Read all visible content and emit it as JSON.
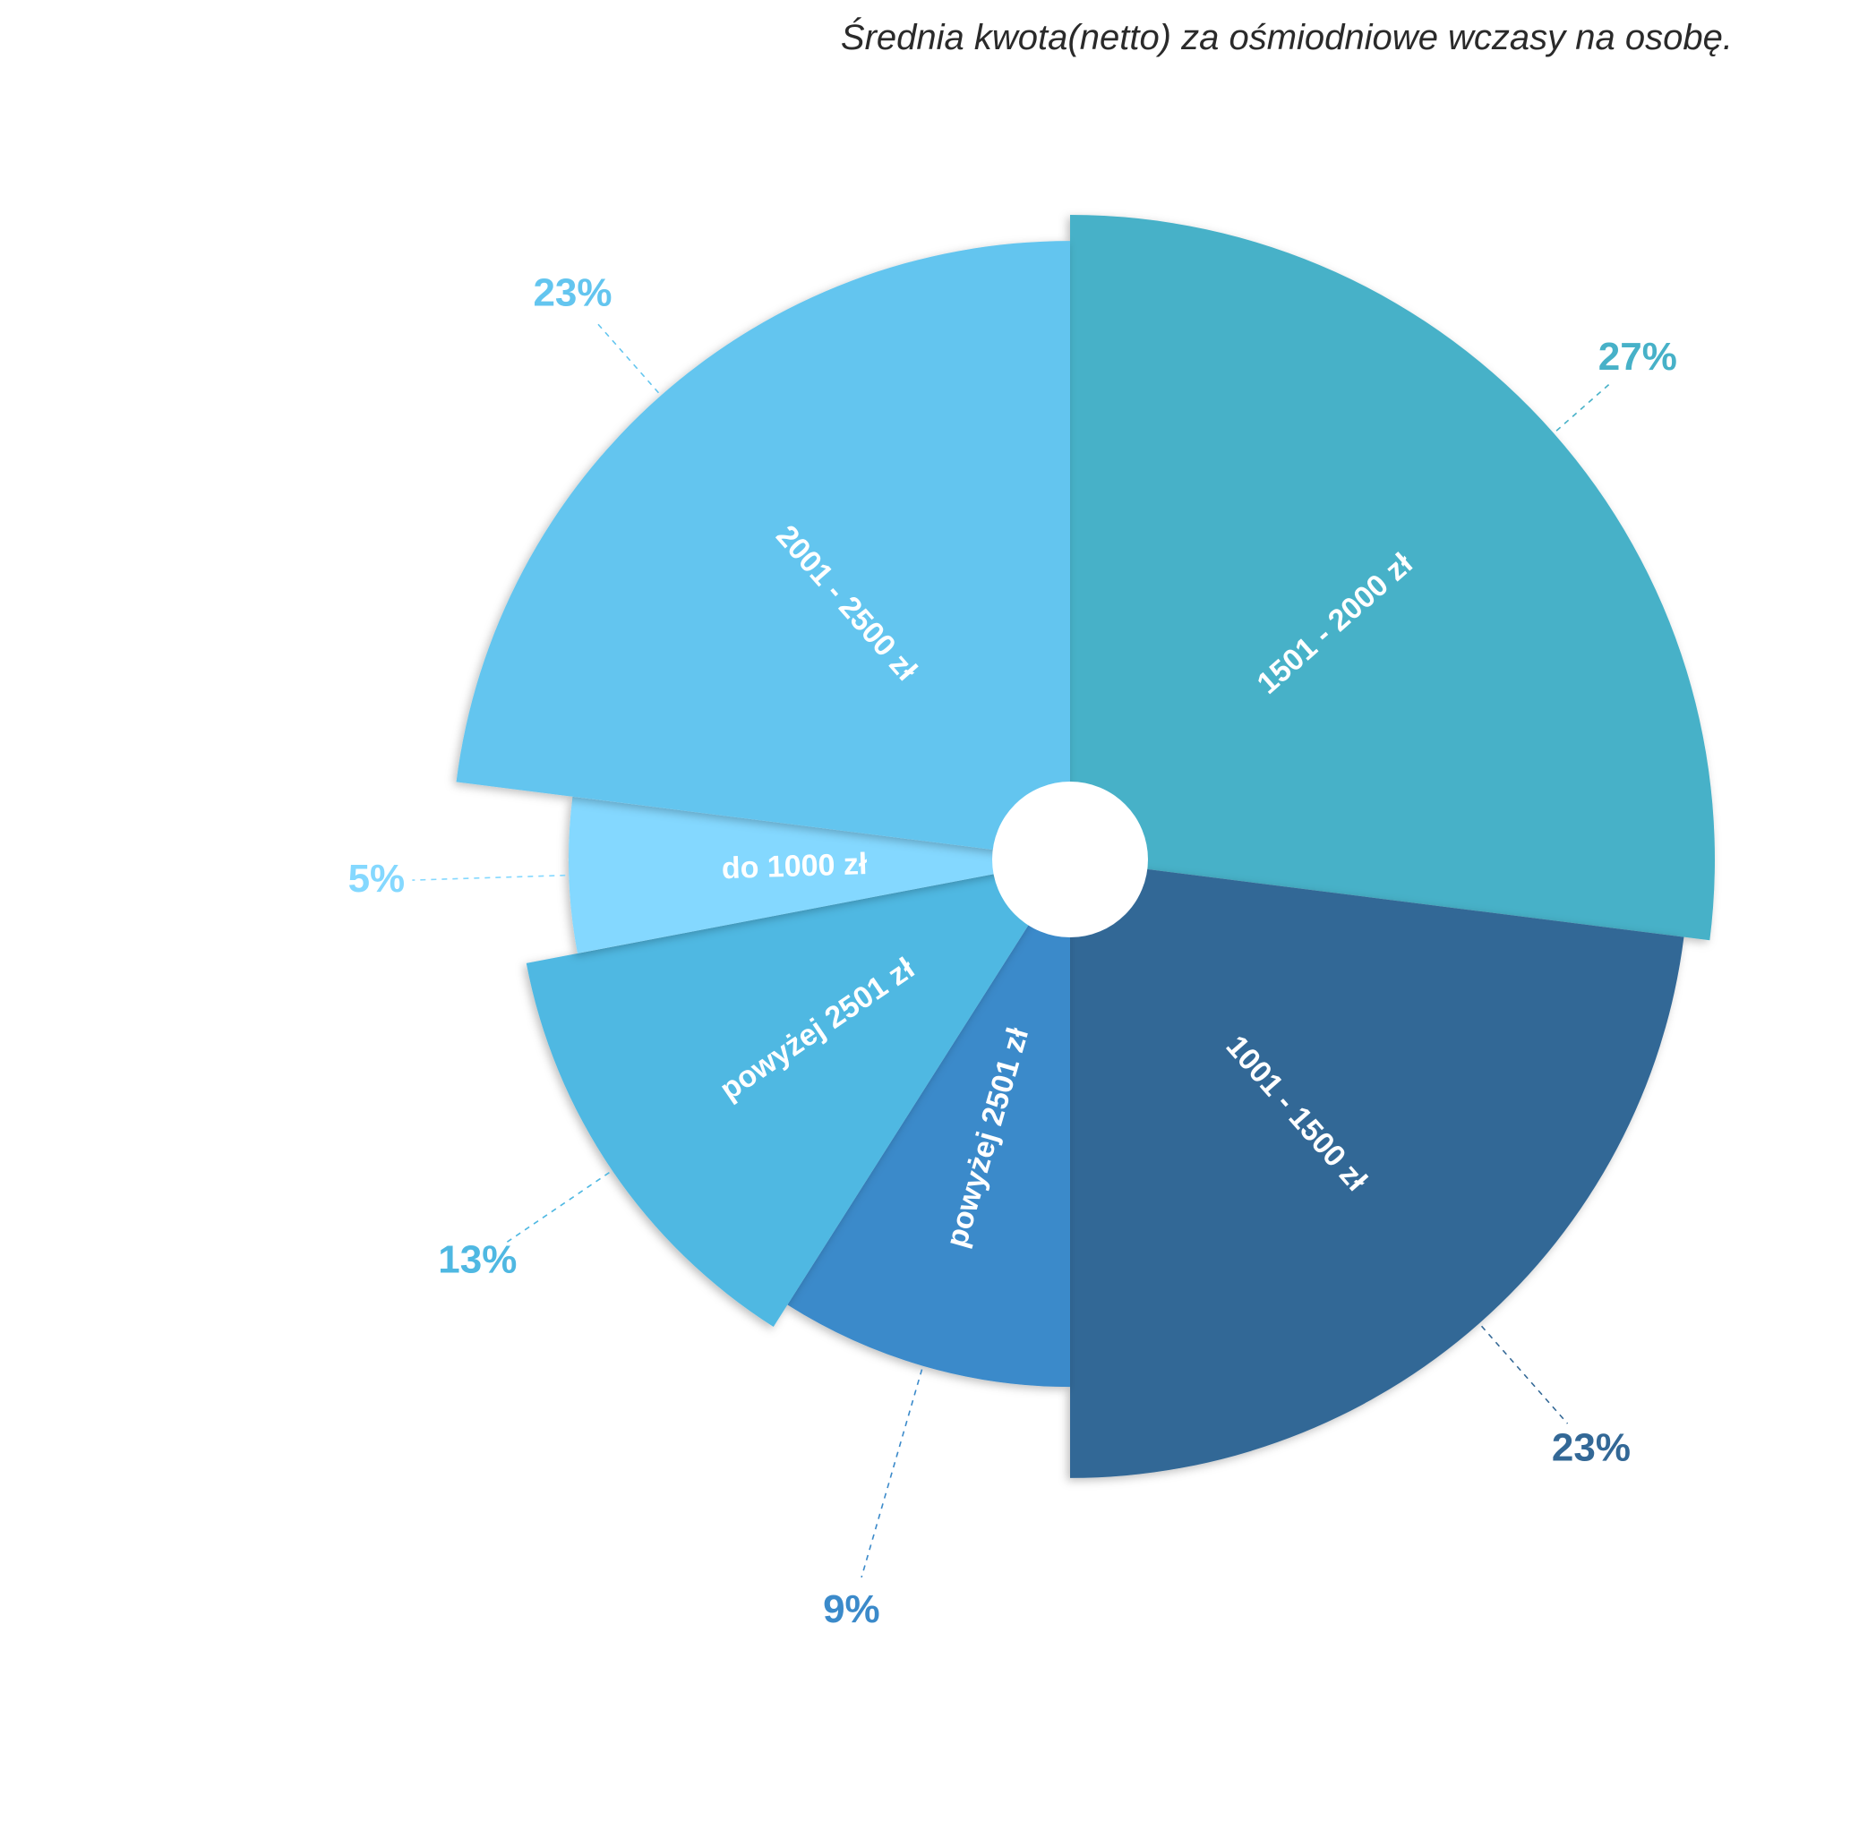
{
  "chart_data": {
    "type": "pie",
    "title": "Średnia kwota(netto) za ośmiodniowe wczasy na osobę.",
    "segments": [
      {
        "label": "1501 - 2000 zł",
        "value": 27,
        "value_label": "27%",
        "color": "#47B1C8",
        "label_color": "#47B1C8"
      },
      {
        "label": "1001 - 1500 zł",
        "value": 23,
        "value_label": "23%",
        "color": "#336896",
        "label_color": "#336896"
      },
      {
        "label": "powyżej 2501 zł",
        "value": 9,
        "value_label": "9%",
        "color": "#3B8ACA",
        "label_color": "#3B8ACA"
      },
      {
        "label": "powyżej 2501 zł",
        "value": 13,
        "value_label": "13%",
        "color": "#4FB8E2",
        "label_color": "#4FB8E2"
      },
      {
        "label": "do 1000 zł",
        "value": 5,
        "value_label": "5%",
        "color": "#84D8FF",
        "label_color": "#84D8FF"
      },
      {
        "label": "2001 - 2500 zł",
        "value": 23,
        "value_label": "23%",
        "color": "#63C5EF",
        "label_color": "#63C5EF"
      }
    ],
    "legend": "none",
    "grid": false
  }
}
